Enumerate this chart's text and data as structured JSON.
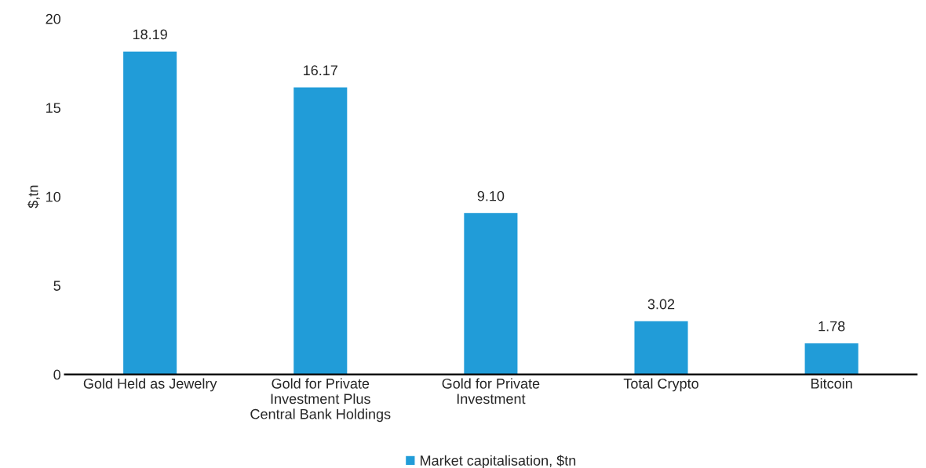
{
  "chart_data": {
    "type": "bar",
    "ylabel": "$,tn",
    "categories": [
      "Gold Held as Jewelry",
      "Gold for Private\nInvestment Plus\nCentral Bank Holdings",
      "Gold for Private\nInvestment",
      "Total Crypto",
      "Bitcoin"
    ],
    "series": [
      {
        "name": "Market capitalisation, $tn",
        "color": "#219cd8",
        "values": [
          18.19,
          16.17,
          9.1,
          3.02,
          1.78
        ]
      }
    ],
    "value_labels": [
      "18.19",
      "16.17",
      "9.10",
      "3.02",
      "1.78"
    ],
    "ylim": [
      0,
      20
    ],
    "yticks": [
      0,
      5,
      10,
      15,
      20
    ],
    "grid": false,
    "legend": "bottom"
  }
}
